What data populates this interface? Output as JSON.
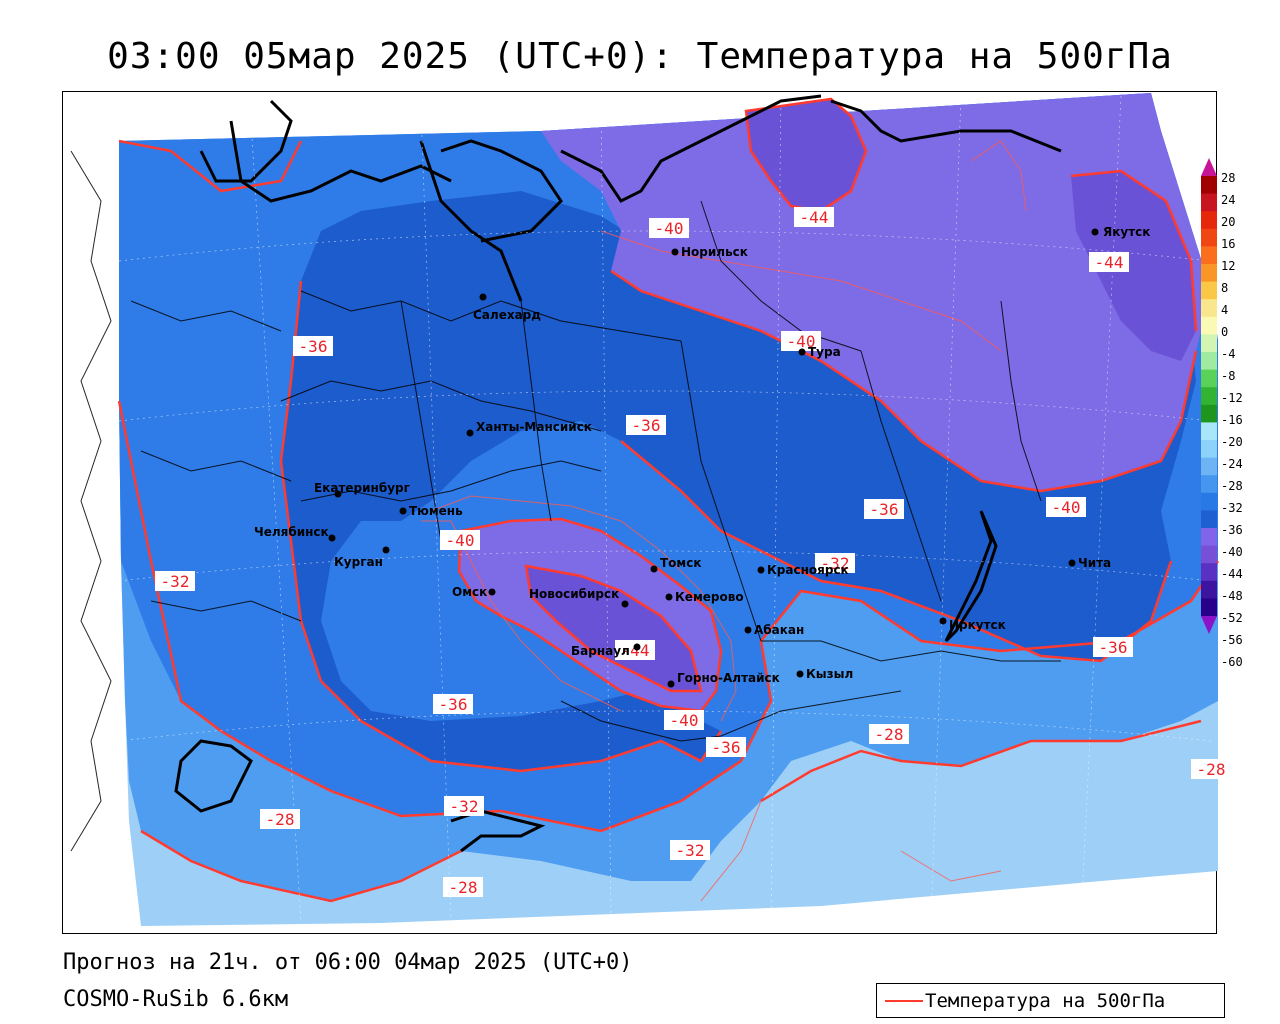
{
  "title": "03:00 05мар 2025 (UTC+0): Температура на 500гПа",
  "footer": {
    "forecast": "Прогноз на 21ч. от 06:00 04мар 2025 (UTC+0)",
    "model": "COSMO-RuSib 6.6км"
  },
  "legend": {
    "line_label": "Температура на 500гПа",
    "line_color": "#ff3b30"
  },
  "colorbar": {
    "ticks": [
      "28",
      "24",
      "20",
      "16",
      "12",
      "8",
      "4",
      "0",
      "-4",
      "-8",
      "-12",
      "-16",
      "-20",
      "-24",
      "-28",
      "-32",
      "-36",
      "-40",
      "-44",
      "-48",
      "-52",
      "-56",
      "-60"
    ],
    "colors": [
      "#a00000",
      "#c8141e",
      "#e6280a",
      "#f04614",
      "#fa6e1e",
      "#fa9628",
      "#fac846",
      "#fae68c",
      "#fafab4",
      "#d2f5b4",
      "#a0eba0",
      "#5ad25a",
      "#32b432",
      "#1e961e",
      "#aae6fa",
      "#8cd2fa",
      "#6eb4f5",
      "#4696f0",
      "#2878e6",
      "#1e5fd2",
      "#8264eb",
      "#7850d7",
      "#5a32c3",
      "#3c14a0",
      "#28008c"
    ],
    "arrow_top": "#c81496",
    "arrow_bottom": "#8c14c8"
  },
  "colors": {
    "band_28": "#9ecff7",
    "band_32": "#4f9df0",
    "band_36": "#2f7ce8",
    "band_40": "#1c5ccc",
    "band_44": "#7e6be6",
    "band_48": "#6a52d6",
    "isoline": "#ff3b30",
    "border": "#000000"
  },
  "isolines": [
    {
      "text": "-40",
      "label": "iso-label-40-north"
    },
    {
      "text": "-44",
      "label": "iso-label-44-north"
    },
    {
      "text": "-44",
      "label": "iso-label-44-yakutsk"
    },
    {
      "text": "-36",
      "label": "iso-label-36-west"
    },
    {
      "text": "-40",
      "label": "iso-label-40-tura"
    },
    {
      "text": "-36",
      "label": "iso-label-36-center"
    },
    {
      "text": "-36",
      "label": "iso-label-36-east"
    },
    {
      "text": "-40",
      "label": "iso-label-40-chita"
    },
    {
      "text": "-40",
      "label": "iso-label-40-omsk"
    },
    {
      "text": "-32",
      "label": "iso-label-32-krasnoyarsk"
    },
    {
      "text": "-32",
      "label": "iso-label-32-west"
    },
    {
      "text": "-44",
      "label": "iso-label-44-barnaul"
    },
    {
      "text": "-36",
      "label": "iso-label-36-irkutsk"
    },
    {
      "text": "-36",
      "label": "iso-label-36-south"
    },
    {
      "text": "-40",
      "label": "iso-label-40-south"
    },
    {
      "text": "-36",
      "label": "iso-label-36-altai"
    },
    {
      "text": "-28",
      "label": "iso-label-28-east"
    },
    {
      "text": "-28",
      "label": "iso-label-28-edge"
    },
    {
      "text": "-28",
      "label": "iso-label-28-sw"
    },
    {
      "text": "-32",
      "label": "iso-label-32-kazakh"
    },
    {
      "text": "-32",
      "label": "iso-label-32-south"
    },
    {
      "text": "-28",
      "label": "iso-label-28-south"
    }
  ],
  "cities": [
    {
      "name": "Якутск"
    },
    {
      "name": "Норильск"
    },
    {
      "name": "Салехард"
    },
    {
      "name": "Тура"
    },
    {
      "name": "Ханты-Мансийск"
    },
    {
      "name": "Екатеринбург"
    },
    {
      "name": "Тюмень"
    },
    {
      "name": "Челябинск"
    },
    {
      "name": "Курган"
    },
    {
      "name": "Омск"
    },
    {
      "name": "Новосибирск"
    },
    {
      "name": "Томск"
    },
    {
      "name": "Кемерово"
    },
    {
      "name": "Красноярск"
    },
    {
      "name": "Барнаул"
    },
    {
      "name": "Абакан"
    },
    {
      "name": "Горно-Алтайск"
    },
    {
      "name": "Кызыл"
    },
    {
      "name": "Иркутск"
    },
    {
      "name": "Чита"
    }
  ]
}
